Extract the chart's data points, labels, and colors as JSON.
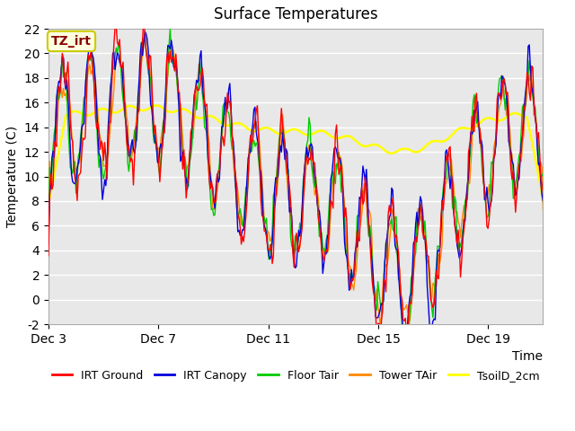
{
  "title": "Surface Temperatures",
  "xlabel": "Time",
  "ylabel": "Temperature (C)",
  "ylim": [
    -2,
    22
  ],
  "yticks": [
    -2,
    0,
    2,
    4,
    6,
    8,
    10,
    12,
    14,
    16,
    18,
    20,
    22
  ],
  "xtick_positions": [
    3,
    7,
    11,
    15,
    19
  ],
  "xtick_labels": [
    "Dec 3",
    "Dec 7",
    "Dec 11",
    "Dec 15",
    "Dec 19"
  ],
  "series_colors": {
    "IRT Ground": "#ff0000",
    "IRT Canopy": "#0000dd",
    "Floor Tair": "#00cc00",
    "Tower TAir": "#ff8800",
    "TsoilD_2cm": "#ffff00"
  },
  "annotation_text": "TZ_irt",
  "annotation_bg": "#ffffe0",
  "annotation_border": "#cccc00",
  "annotation_text_color": "#880000",
  "fig_bg": "#ffffff",
  "plot_bg": "#e8e8e8",
  "grid_color": "#ffffff",
  "title_fontsize": 12,
  "axis_label_fontsize": 10,
  "tick_fontsize": 10,
  "legend_fontsize": 9
}
